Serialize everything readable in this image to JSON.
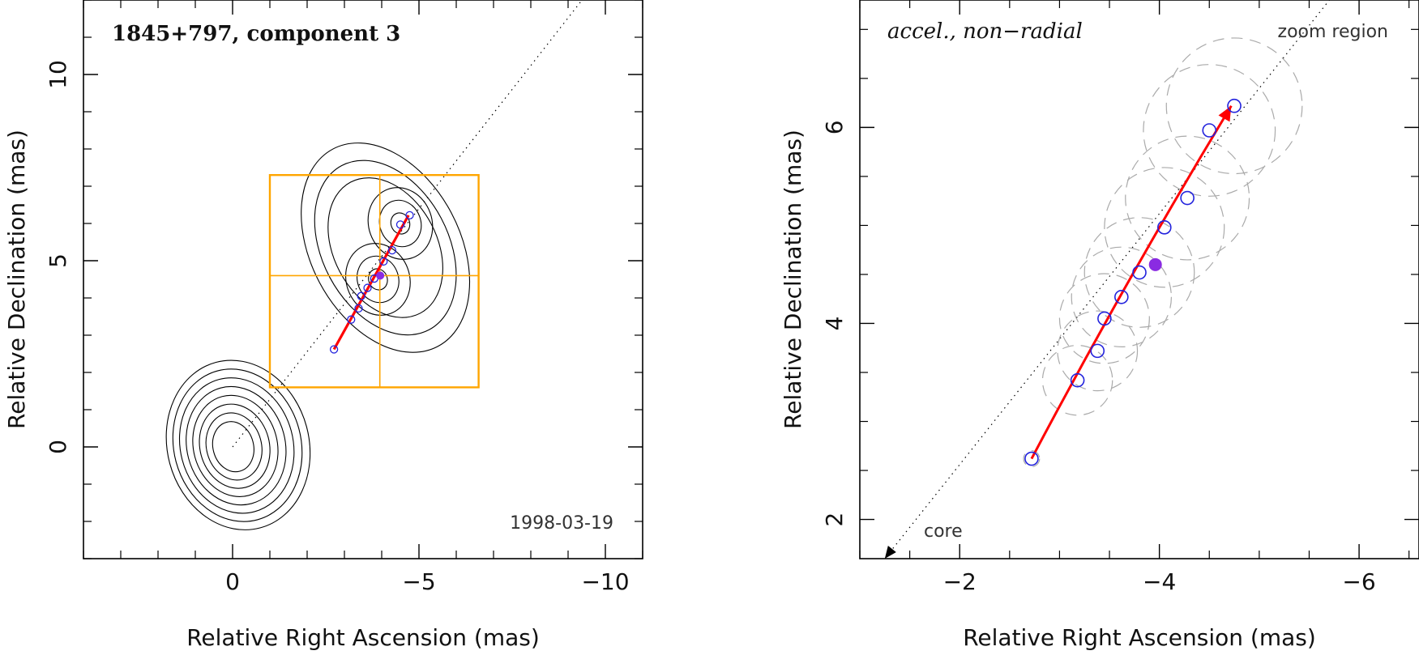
{
  "chart_data": [
    {
      "type": "scatter",
      "panel": "left",
      "title": "1845+797, component 3",
      "epoch": "1998-03-19",
      "xlabel": "Relative Right Ascension (mas)",
      "ylabel": "Relative Declination (mas)",
      "xlim": [
        4,
        -11
      ],
      "ylim": [
        -3,
        12
      ],
      "xticks": [
        0,
        -5,
        -10
      ],
      "xtick_labels": [
        "0",
        "−5",
        "−10"
      ],
      "yticks": [
        0,
        5,
        10
      ],
      "ytick_labels": [
        "0",
        "5",
        "10"
      ],
      "zoom_box": {
        "x": [
          -1.0,
          -6.6
        ],
        "y": [
          1.6,
          7.3
        ],
        "cross": [
          -3.95,
          4.6
        ]
      },
      "core_contours": {
        "center": [
          0.0,
          0.0
        ],
        "levels": 8
      },
      "jet_contours": {
        "peaks": [
          [
            -3.9,
            4.5
          ],
          [
            -4.5,
            6.0
          ]
        ],
        "levels": 6
      },
      "positions": [
        {
          "x": -2.72,
          "y": 2.62
        },
        {
          "x": -3.18,
          "y": 3.42
        },
        {
          "x": -3.38,
          "y": 3.72
        },
        {
          "x": -3.45,
          "y": 4.05
        },
        {
          "x": -3.62,
          "y": 4.27
        },
        {
          "x": -3.8,
          "y": 4.52
        },
        {
          "x": -4.05,
          "y": 4.98
        },
        {
          "x": -4.28,
          "y": 5.28
        },
        {
          "x": -4.5,
          "y": 5.97
        },
        {
          "x": -4.75,
          "y": 6.22
        }
      ],
      "reference_point": {
        "x": -3.96,
        "y": 4.6
      },
      "trajectory": {
        "start": [
          -2.72,
          2.62
        ],
        "end": [
          -4.72,
          6.22
        ]
      },
      "radial_line": {
        "from": [
          0,
          0
        ],
        "slope_dec_per_ra": -1.28
      }
    },
    {
      "type": "scatter",
      "panel": "right",
      "title": "accel., non−radial",
      "region_label": "zoom region",
      "core_label": "core",
      "xlabel": "Relative Right Ascension (mas)",
      "ylabel": "Relative Declination (mas)",
      "xlim": [
        -1.0,
        -6.6
      ],
      "ylim": [
        1.6,
        7.3
      ],
      "xticks": [
        -2,
        -4,
        -6
      ],
      "xtick_labels": [
        "−2",
        "−4",
        "−6"
      ],
      "yticks": [
        2,
        4,
        6
      ],
      "ytick_labels": [
        "2",
        "4",
        "6"
      ],
      "positions": [
        {
          "x": -2.72,
          "y": 2.62,
          "size": 0.08
        },
        {
          "x": -3.18,
          "y": 3.42,
          "size": 0.35
        },
        {
          "x": -3.38,
          "y": 3.72,
          "size": 0.4
        },
        {
          "x": -3.45,
          "y": 4.05,
          "size": 0.45
        },
        {
          "x": -3.62,
          "y": 4.27,
          "size": 0.5
        },
        {
          "x": -3.8,
          "y": 4.52,
          "size": 0.55
        },
        {
          "x": -4.05,
          "y": 4.98,
          "size": 0.6
        },
        {
          "x": -4.28,
          "y": 5.28,
          "size": 0.62
        },
        {
          "x": -4.5,
          "y": 5.97,
          "size": 0.66
        },
        {
          "x": -4.75,
          "y": 6.22,
          "size": 0.68
        }
      ],
      "reference_point": {
        "x": -3.96,
        "y": 4.6
      },
      "trajectory": {
        "start": [
          -2.72,
          2.62
        ],
        "end": [
          -4.72,
          6.22
        ],
        "arrow": true
      },
      "core_arrow": {
        "x": -1.25,
        "y": 1.6
      }
    }
  ],
  "colors": {
    "trajectory": "#ff0000",
    "positions": "#2222dd",
    "reference": "#8a2be2",
    "zoom_box": "#ffa500",
    "uncertainty": "#aaaaaa",
    "contours": "#000000"
  }
}
